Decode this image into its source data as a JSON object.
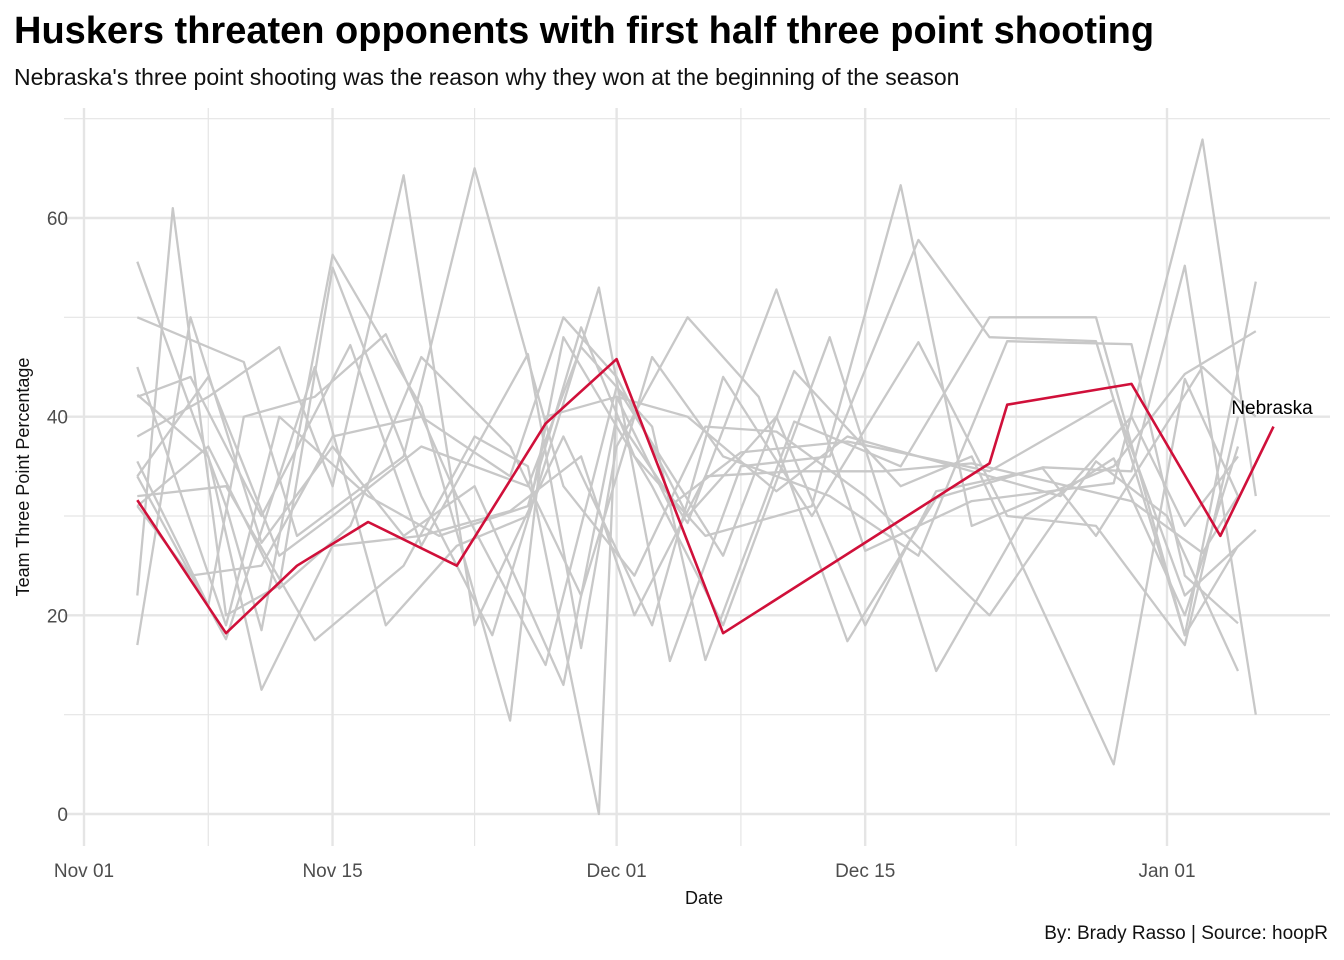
{
  "header": {
    "title": "Huskers threaten opponents with first half three point shooting",
    "subtitle": "Nebraska's three point shooting was the reason why they won at the beginning of the season"
  },
  "caption": "By: Brady Rasso | Source: hoopR",
  "chart_data": {
    "type": "line",
    "xlabel": "Date",
    "ylabel": "Team Three Point Percentage",
    "x_scale": "date",
    "xlim": [
      "2021-11-01",
      "2022-01-08"
    ],
    "ylim": [
      0,
      70
    ],
    "x_ticks": [
      {
        "date": "2021-11-01",
        "label": "Nov 01"
      },
      {
        "date": "2021-11-15",
        "label": "Nov 15"
      },
      {
        "date": "2021-12-01",
        "label": "Dec 01"
      },
      {
        "date": "2021-12-15",
        "label": "Dec 15"
      },
      {
        "date": "2022-01-01",
        "label": "Jan 01"
      }
    ],
    "y_ticks": [
      0,
      20,
      40,
      60
    ],
    "grid": true,
    "colors": {
      "highlight": "#D0103A",
      "others": "#C8C8C8",
      "grid": "#E5E5E5"
    },
    "highlight": {
      "name": "Nebraska",
      "label": "Nebraska",
      "points": [
        [
          "2021-11-04",
          31.6
        ],
        [
          "2021-11-09",
          18.2
        ],
        [
          "2021-11-13",
          25.0
        ],
        [
          "2021-11-17",
          29.4
        ],
        [
          "2021-11-22",
          25.0
        ],
        [
          "2021-11-27",
          39.3
        ],
        [
          "2021-12-01",
          45.8
        ],
        [
          "2021-12-07",
          18.2
        ],
        [
          "2021-12-22",
          35.3
        ],
        [
          "2021-12-23",
          41.2
        ],
        [
          "2021-12-30",
          43.3
        ],
        [
          "2022-01-04",
          28.0
        ],
        [
          "2022-01-07",
          39.0
        ]
      ]
    },
    "other_series": [
      [
        [
          "2021-11-04",
          55.6
        ],
        [
          "2021-11-09",
          31.0
        ],
        [
          "2021-11-11",
          18.5
        ],
        [
          "2021-11-15",
          56.3
        ],
        [
          "2021-11-20",
          41.0
        ],
        [
          "2021-11-25",
          9.4
        ],
        [
          "2021-11-27",
          40.0
        ],
        [
          "2021-12-01",
          42.0
        ],
        [
          "2021-12-04",
          31.0
        ],
        [
          "2021-12-08",
          36.4
        ],
        [
          "2021-12-14",
          37.5
        ],
        [
          "2021-12-22",
          34.5
        ],
        [
          "2021-12-29",
          41.7
        ],
        [
          "2022-01-02",
          22.0
        ],
        [
          "2022-01-06",
          28.6
        ]
      ],
      [
        [
          "2021-11-04",
          50.0
        ],
        [
          "2021-11-10",
          45.5
        ],
        [
          "2021-11-13",
          28.0
        ],
        [
          "2021-11-19",
          36.0
        ],
        [
          "2021-11-23",
          65.0
        ],
        [
          "2021-11-28",
          33.0
        ],
        [
          "2021-12-02",
          24.0
        ],
        [
          "2021-12-06",
          39.0
        ],
        [
          "2021-12-10",
          38.5
        ],
        [
          "2021-12-15",
          32.0
        ],
        [
          "2021-12-22",
          20.0
        ],
        [
          "2021-12-28",
          35.5
        ],
        [
          "2022-01-01",
          30.0
        ],
        [
          "2022-01-05",
          14.4
        ]
      ],
      [
        [
          "2021-11-04",
          42.0
        ],
        [
          "2021-11-07",
          44.0
        ],
        [
          "2021-11-11",
          30.0
        ],
        [
          "2021-11-16",
          47.2
        ],
        [
          "2021-11-20",
          27.0
        ],
        [
          "2021-11-26",
          46.3
        ],
        [
          "2021-11-29",
          16.7
        ],
        [
          "2021-12-01",
          37.0
        ],
        [
          "2021-12-05",
          50.0
        ],
        [
          "2021-12-09",
          42.0
        ],
        [
          "2021-12-14",
          17.4
        ],
        [
          "2021-12-19",
          31.8
        ],
        [
          "2021-12-25",
          34.9
        ],
        [
          "2021-12-30",
          34.5
        ],
        [
          "2022-01-02",
          55.2
        ],
        [
          "2022-01-06",
          10.0
        ]
      ],
      [
        [
          "2021-11-04",
          22.0
        ],
        [
          "2021-11-06",
          61.0
        ],
        [
          "2021-11-09",
          20.0
        ],
        [
          "2021-11-12",
          23.0
        ],
        [
          "2021-11-15",
          55.0
        ],
        [
          "2021-11-20",
          32.0
        ],
        [
          "2021-11-24",
          18.0
        ],
        [
          "2021-11-30",
          53.0
        ],
        [
          "2021-12-04",
          15.4
        ],
        [
          "2021-12-08",
          35.0
        ],
        [
          "2021-12-13",
          36.0
        ],
        [
          "2021-12-18",
          57.8
        ],
        [
          "2021-12-22",
          48.0
        ],
        [
          "2021-12-28",
          47.6
        ],
        [
          "2022-01-02",
          18.0
        ],
        [
          "2022-01-06",
          53.6
        ]
      ],
      [
        [
          "2021-11-04",
          17.0
        ],
        [
          "2021-11-07",
          50.0
        ],
        [
          "2021-11-11",
          27.3
        ],
        [
          "2021-11-15",
          37.0
        ],
        [
          "2021-11-19",
          28.0
        ],
        [
          "2021-11-23",
          33.0
        ],
        [
          "2021-11-28",
          13.0
        ],
        [
          "2021-12-01",
          40.0
        ],
        [
          "2021-12-05",
          29.3
        ],
        [
          "2021-12-10",
          52.8
        ],
        [
          "2021-12-15",
          26.5
        ],
        [
          "2021-12-21",
          31.5
        ],
        [
          "2021-12-29",
          33.3
        ],
        [
          "2022-01-03",
          67.9
        ],
        [
          "2022-01-06",
          32.0
        ]
      ],
      [
        [
          "2021-11-04",
          45.0
        ],
        [
          "2021-11-09",
          19.0
        ],
        [
          "2021-11-12",
          40.0
        ],
        [
          "2021-11-17",
          32.0
        ],
        [
          "2021-11-21",
          28.0
        ],
        [
          "2021-11-26",
          31.0
        ],
        [
          "2021-11-29",
          49.0
        ],
        [
          "2021-12-02",
          36.0
        ],
        [
          "2021-12-06",
          28.0
        ],
        [
          "2021-12-12",
          31.0
        ],
        [
          "2021-12-17",
          63.3
        ],
        [
          "2021-12-21",
          29.0
        ],
        [
          "2021-12-29",
          35.0
        ],
        [
          "2022-01-02",
          44.3
        ],
        [
          "2022-01-06",
          48.6
        ]
      ],
      [
        [
          "2021-11-04",
          35.5
        ],
        [
          "2021-11-08",
          21.0
        ],
        [
          "2021-11-10",
          40.0
        ],
        [
          "2021-11-14",
          42.0
        ],
        [
          "2021-11-18",
          48.3
        ],
        [
          "2021-11-22",
          32.0
        ],
        [
          "2021-11-27",
          15.0
        ],
        [
          "2021-12-01",
          43.0
        ],
        [
          "2021-12-07",
          26.0
        ],
        [
          "2021-12-11",
          44.6
        ],
        [
          "2021-12-17",
          33.0
        ],
        [
          "2021-12-21",
          36.0
        ],
        [
          "2021-12-29",
          5.0
        ],
        [
          "2022-01-02",
          43.8
        ],
        [
          "2022-01-05",
          32.0
        ]
      ],
      [
        [
          "2021-11-04",
          38.0
        ],
        [
          "2021-11-08",
          42.0
        ],
        [
          "2021-11-12",
          47.0
        ],
        [
          "2021-11-15",
          33.0
        ],
        [
          "2021-11-19",
          64.3
        ],
        [
          "2021-11-23",
          19.0
        ],
        [
          "2021-11-28",
          38.0
        ],
        [
          "2021-12-03",
          19.0
        ],
        [
          "2021-12-07",
          44.0
        ],
        [
          "2021-12-12",
          30.0
        ],
        [
          "2021-12-18",
          47.5
        ],
        [
          "2021-12-23",
          30.0
        ],
        [
          "2021-12-28",
          29.0
        ],
        [
          "2022-01-02",
          17.0
        ],
        [
          "2022-01-05",
          40.0
        ]
      ],
      [
        [
          "2021-11-04",
          31.0
        ],
        [
          "2021-11-08",
          37.0
        ],
        [
          "2021-11-12",
          22.7
        ],
        [
          "2021-11-16",
          29.0
        ],
        [
          "2021-11-20",
          46.0
        ],
        [
          "2021-11-25",
          37.0
        ],
        [
          "2021-11-29",
          22.0
        ],
        [
          "2021-12-03",
          46.0
        ],
        [
          "2021-12-07",
          36.0
        ],
        [
          "2021-12-13",
          32.0
        ],
        [
          "2021-12-18",
          26.0
        ],
        [
          "2021-12-23",
          47.6
        ],
        [
          "2021-12-30",
          47.3
        ],
        [
          "2022-01-02",
          24.0
        ],
        [
          "2022-01-05",
          19.2
        ]
      ],
      [
        [
          "2021-11-04",
          34.0
        ],
        [
          "2021-11-09",
          17.6
        ],
        [
          "2021-11-14",
          45.0
        ],
        [
          "2021-11-18",
          19.0
        ],
        [
          "2021-11-22",
          27.0
        ],
        [
          "2021-11-26",
          30.0
        ],
        [
          "2021-11-28",
          48.0
        ],
        [
          "2021-12-03",
          33.0
        ],
        [
          "2021-12-07",
          19.0
        ],
        [
          "2021-12-13",
          48.0
        ],
        [
          "2021-12-19",
          14.4
        ],
        [
          "2021-12-24",
          30.0
        ],
        [
          "2021-12-29",
          35.8
        ],
        [
          "2022-01-02",
          20.0
        ],
        [
          "2022-01-05",
          37.0
        ]
      ],
      [
        [
          "2021-11-04",
          42.2
        ],
        [
          "2021-11-08",
          36.0
        ],
        [
          "2021-11-11",
          12.5
        ],
        [
          "2021-11-15",
          27.0
        ],
        [
          "2021-11-20",
          28.0
        ],
        [
          "2021-11-25",
          30.5
        ],
        [
          "2021-11-29",
          36.0
        ],
        [
          "2021-12-02",
          20.0
        ],
        [
          "2021-12-06",
          34.0
        ],
        [
          "2021-12-11",
          34.5
        ],
        [
          "2021-12-16",
          34.5
        ],
        [
          "2021-12-21",
          35.3
        ],
        [
          "2021-12-30",
          31.5
        ],
        [
          "2022-01-03",
          26.3
        ],
        [
          "2022-01-05",
          32.0
        ]
      ],
      [
        [
          "2021-11-04",
          34.0
        ],
        [
          "2021-11-08",
          44.0
        ],
        [
          "2021-11-12",
          26.0
        ],
        [
          "2021-11-15",
          30.0
        ],
        [
          "2021-11-20",
          37.0
        ],
        [
          "2021-11-26",
          33.0
        ],
        [
          "2021-11-29",
          47.0
        ],
        [
          "2021-12-03",
          39.0
        ],
        [
          "2021-12-06",
          15.5
        ],
        [
          "2021-12-11",
          39.5
        ],
        [
          "2021-12-17",
          35.0
        ],
        [
          "2021-12-22",
          50.0
        ],
        [
          "2021-12-28",
          50.0
        ],
        [
          "2022-01-02",
          18.0
        ],
        [
          "2022-01-05",
          27.0
        ]
      ],
      [
        [
          "2021-11-04",
          31.0
        ],
        [
          "2021-11-07",
          24.0
        ],
        [
          "2021-11-11",
          25.0
        ],
        [
          "2021-11-15",
          38.0
        ],
        [
          "2021-11-20",
          40.0
        ],
        [
          "2021-11-25",
          34.0
        ],
        [
          "2021-11-28",
          50.0
        ],
        [
          "2021-12-01",
          44.0
        ],
        [
          "2021-12-05",
          30.0
        ],
        [
          "2021-12-10",
          40.0
        ],
        [
          "2021-12-15",
          19.0
        ],
        [
          "2021-12-19",
          32.5
        ],
        [
          "2021-12-25",
          34.8
        ],
        [
          "2021-12-28",
          28.0
        ],
        [
          "2022-01-03",
          45.0
        ],
        [
          "2022-01-06",
          40.0
        ]
      ],
      [
        [
          "2021-11-04",
          32.0
        ],
        [
          "2021-11-09",
          33.0
        ],
        [
          "2021-11-14",
          17.5
        ],
        [
          "2021-11-19",
          25.0
        ],
        [
          "2021-11-23",
          38.0
        ],
        [
          "2021-11-26",
          35.0
        ],
        [
          "2021-11-30",
          0.0
        ],
        [
          "2021-12-01",
          42.0
        ],
        [
          "2021-12-05",
          40.0
        ],
        [
          "2021-12-10",
          32.5
        ],
        [
          "2021-12-14",
          38.0
        ],
        [
          "2021-12-20",
          35.0
        ],
        [
          "2021-12-26",
          32.0
        ],
        [
          "2021-12-30",
          40.0
        ],
        [
          "2022-01-02",
          29.0
        ],
        [
          "2022-01-05",
          36.0
        ]
      ]
    ]
  }
}
